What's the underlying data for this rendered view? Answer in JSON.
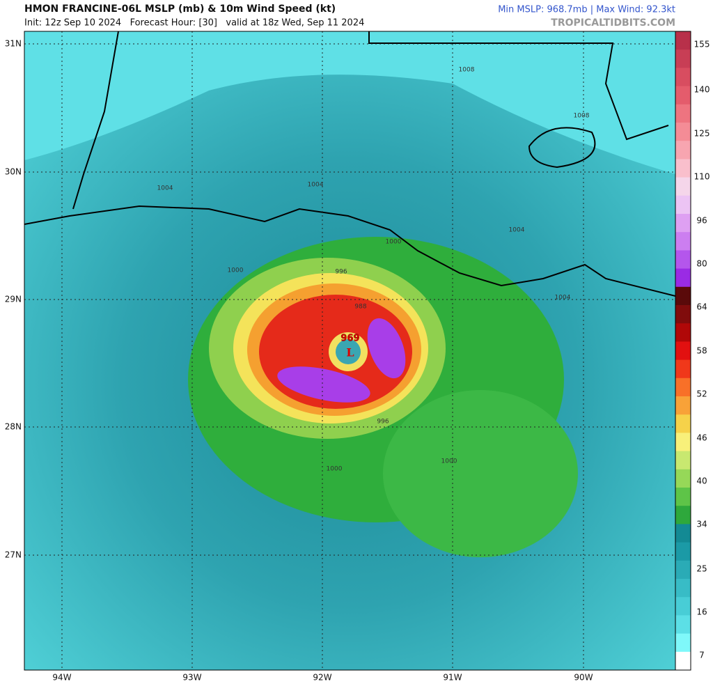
{
  "header": {
    "title": "HMON FRANCINE-06L MSLP (mb) & 10m Wind Speed (kt)",
    "subtitle": "Init: 12z Sep 10 2024   Forecast Hour: [30]   valid at 18z Wed, Sep 11 2024",
    "stats": "Min MSLP: 968.7mb | Max Wind: 92.3kt",
    "brand": "TROPICALTIDBITS.COM"
  },
  "map": {
    "lat_labels": [
      "31N",
      "30N",
      "29N",
      "28N",
      "27N"
    ],
    "lon_labels": [
      "94W",
      "93W",
      "92W",
      "91W",
      "90W"
    ],
    "contour_labels": [
      "1008",
      "1008",
      "1004",
      "1004",
      "1004",
      "1000",
      "1000",
      "996",
      "988",
      "1000",
      "1000",
      "996",
      "1004"
    ],
    "center": {
      "pressure": "969",
      "symbol": "L"
    }
  },
  "colorbar": {
    "labels": [
      155,
      140,
      125,
      110,
      96,
      80,
      64,
      58,
      52,
      46,
      40,
      34,
      25,
      16,
      7
    ]
  }
}
